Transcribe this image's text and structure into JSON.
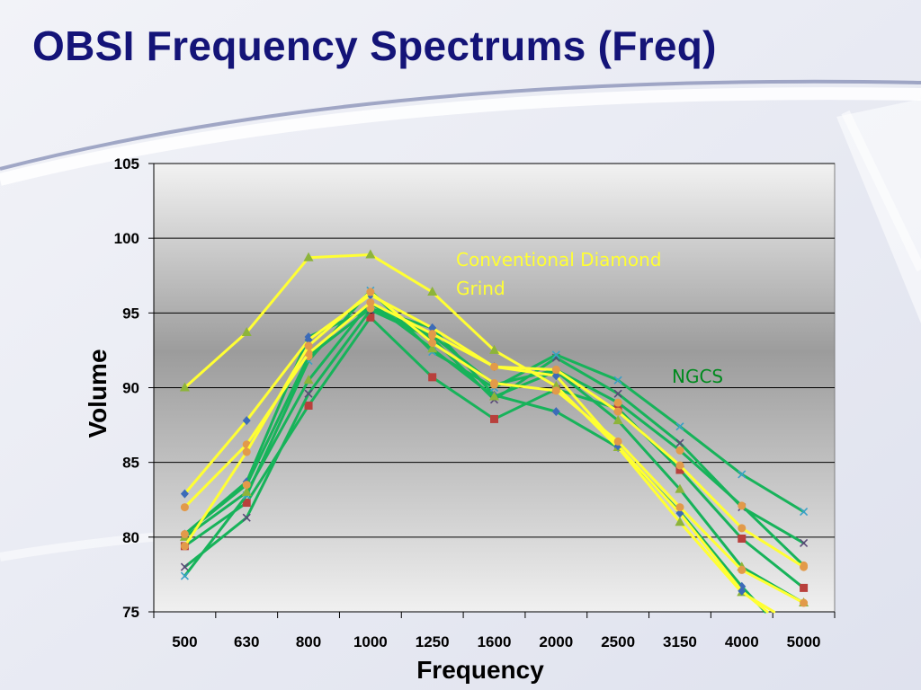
{
  "slide": {
    "title": "OBSI Frequency Spectrums (Freq)"
  },
  "chart_data": {
    "type": "line",
    "xlabel": "Frequency",
    "ylabel": "Volume",
    "categories": [
      "500",
      "630",
      "800",
      "1000",
      "1250",
      "1600",
      "2000",
      "2500",
      "3150",
      "4000",
      "5000"
    ],
    "ylim": [
      75,
      105
    ],
    "yticks": [
      75,
      80,
      85,
      90,
      95,
      100,
      105
    ],
    "grid": true,
    "legend": "none",
    "annotations": [
      {
        "text": "Conventional Diamond Grind",
        "lines": [
          "Conventional Diamond",
          "Grind"
        ],
        "color": "#ffff33"
      },
      {
        "text": "NGCS",
        "lines": [
          "NGCS"
        ],
        "color": "#008a1e"
      }
    ],
    "colors": {
      "conventional": "#ffff33",
      "ngcs": "#17b35a"
    },
    "series": [
      {
        "group": "conventional",
        "marker": "triangle",
        "marker_color": "#8db43a",
        "values": [
          90.0,
          93.7,
          98.7,
          98.9,
          96.4,
          92.5,
          90.1,
          86.0,
          81.0,
          76.3,
          73.8
        ]
      },
      {
        "group": "conventional",
        "marker": "diamond",
        "marker_color": "#3c6bb8",
        "values": [
          82.9,
          87.8,
          93.2,
          96.2,
          94.0,
          91.4,
          90.8,
          86.1,
          81.6,
          76.4,
          73.0
        ]
      },
      {
        "group": "conventional",
        "marker": "circle",
        "marker_color": "#e29a4a",
        "values": [
          82.0,
          86.2,
          92.3,
          95.7,
          93.6,
          91.4,
          91.2,
          88.4,
          84.8,
          80.6,
          78.0
        ]
      },
      {
        "group": "conventional",
        "marker": "circle",
        "marker_color": "#e29a4a",
        "values": [
          79.4,
          85.7,
          92.8,
          96.4,
          93.0,
          90.3,
          89.8,
          86.4,
          82.0,
          77.8,
          75.6
        ]
      },
      {
        "group": "ngcs",
        "marker": "diamond",
        "marker_color": "#3c6bb8",
        "values": [
          80.2,
          83.7,
          93.4,
          95.3,
          94.0,
          89.5,
          88.4,
          86.0,
          81.7,
          76.7,
          72.2
        ]
      },
      {
        "group": "ngcs",
        "marker": "square",
        "marker_color": "#b8403c",
        "values": [
          79.4,
          82.3,
          88.8,
          94.7,
          90.7,
          87.9,
          89.9,
          88.6,
          84.5,
          79.9,
          76.6
        ]
      },
      {
        "group": "ngcs",
        "marker": "x",
        "marker_color": "#5a4878",
        "values": [
          78.0,
          81.3,
          89.6,
          95.2,
          93.3,
          89.2,
          92.0,
          89.6,
          86.3,
          82.0,
          79.6
        ]
      },
      {
        "group": "ngcs",
        "marker": "x",
        "marker_color": "#3aa0c8",
        "values": [
          77.4,
          82.8,
          91.8,
          96.5,
          92.4,
          90.0,
          92.2,
          90.5,
          87.4,
          84.2,
          81.7
        ]
      },
      {
        "group": "ngcs",
        "marker": "triangle",
        "marker_color": "#8db43a",
        "values": [
          80.0,
          83.0,
          90.5,
          95.7,
          92.6,
          89.4,
          91.1,
          87.8,
          83.2,
          78.0,
          75.6
        ]
      },
      {
        "group": "ngcs",
        "marker": "circle",
        "marker_color": "#e29a4a",
        "values": [
          80.2,
          83.5,
          92.1,
          95.3,
          93.5,
          90.2,
          91.2,
          89.0,
          85.8,
          82.1,
          78.1
        ]
      }
    ]
  }
}
